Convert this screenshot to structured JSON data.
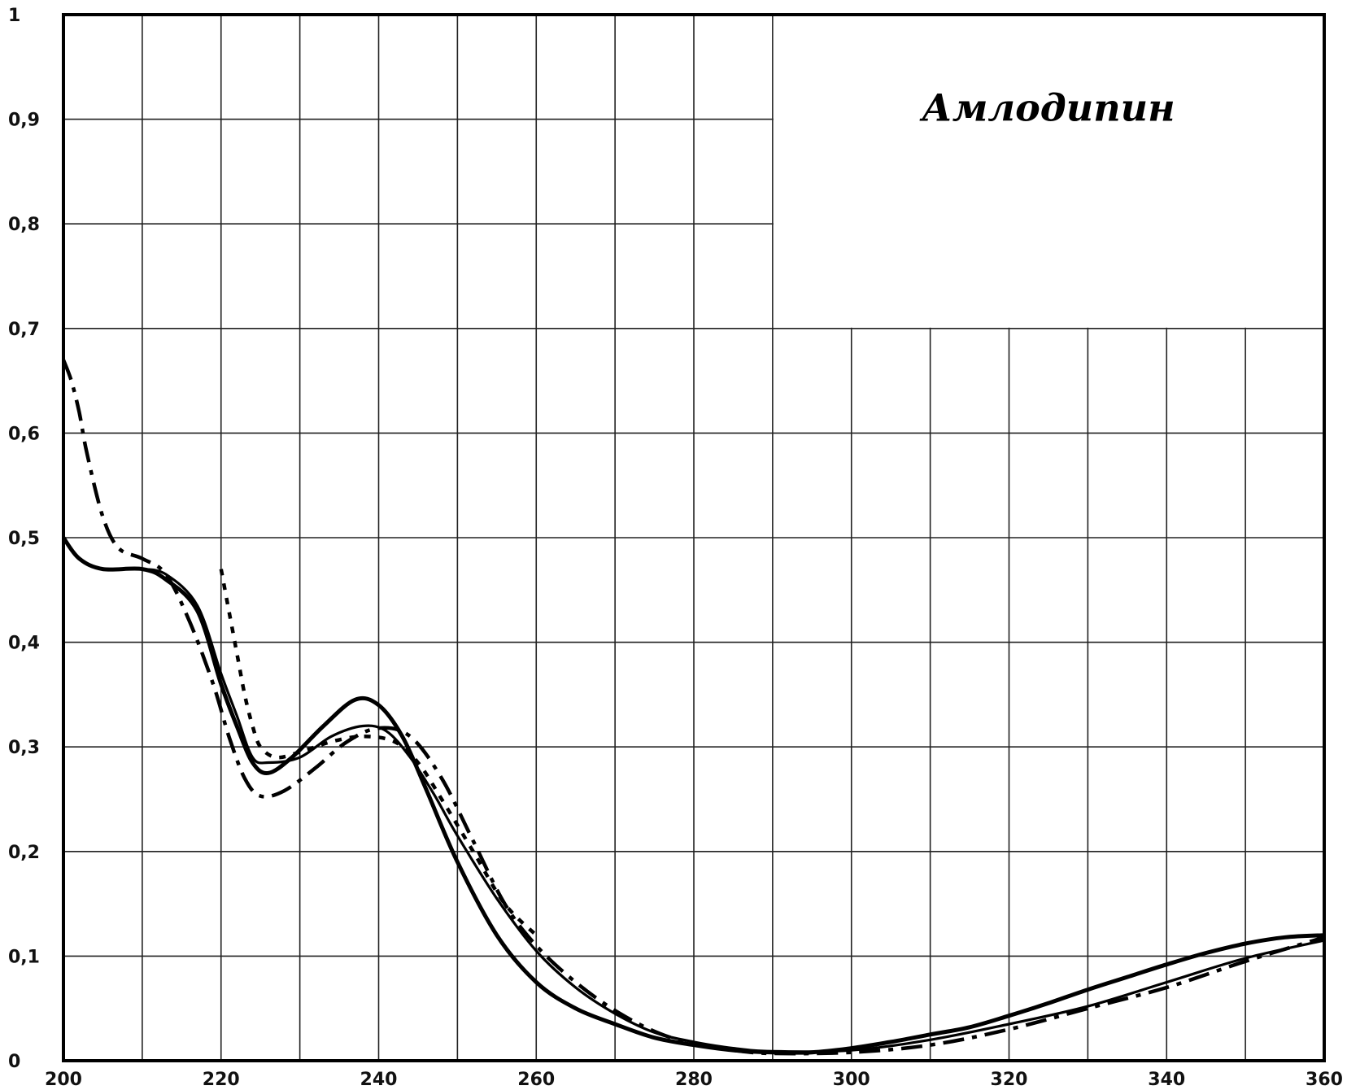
{
  "chart_data": {
    "type": "line",
    "title": "Амлодипин",
    "xlabel": "",
    "ylabel": "",
    "xlim": [
      200,
      360
    ],
    "ylim": [
      0,
      1
    ],
    "x_ticks": [
      "200",
      "220",
      "240",
      "260",
      "280",
      "300",
      "320",
      "340",
      "360"
    ],
    "y_ticks": [
      "0",
      "0,1",
      "0,2",
      "0,3",
      "0,4",
      "0,5",
      "0,6",
      "0,7",
      "0,8",
      "0,9",
      "1"
    ],
    "grid": true,
    "legend": "none",
    "series": [
      {
        "style": "solid",
        "x": [
          200,
          202,
          205,
          210,
          213,
          217,
          220,
          222,
          224,
          226,
          229,
          233,
          237,
          240,
          243,
          246,
          250,
          255,
          260,
          265,
          270,
          275,
          280,
          285,
          290,
          295,
          300,
          305,
          310,
          315,
          320,
          325,
          330,
          335,
          340,
          345,
          350,
          355,
          360
        ],
        "y": [
          0.5,
          0.48,
          0.47,
          0.47,
          0.46,
          0.43,
          0.36,
          0.32,
          0.285,
          0.275,
          0.29,
          0.32,
          0.345,
          0.34,
          0.31,
          0.26,
          0.19,
          0.12,
          0.075,
          0.05,
          0.035,
          0.022,
          0.015,
          0.01,
          0.008,
          0.008,
          0.012,
          0.018,
          0.025,
          0.032,
          0.043,
          0.055,
          0.068,
          0.08,
          0.092,
          0.103,
          0.112,
          0.118,
          0.12
        ]
      },
      {
        "style": "solid-thin",
        "x": [
          210,
          213,
          217,
          220,
          222,
          224,
          226,
          230,
          234,
          238,
          241,
          244,
          247,
          250,
          255,
          260,
          265,
          270,
          275,
          280,
          285,
          290,
          300,
          310,
          320,
          330,
          340,
          350,
          360
        ],
        "y": [
          0.47,
          0.465,
          0.435,
          0.37,
          0.33,
          0.29,
          0.285,
          0.29,
          0.31,
          0.32,
          0.315,
          0.29,
          0.255,
          0.215,
          0.155,
          0.105,
          0.07,
          0.045,
          0.027,
          0.018,
          0.012,
          0.009,
          0.01,
          0.02,
          0.035,
          0.052,
          0.075,
          0.098,
          0.115
        ]
      },
      {
        "style": "dash-dot",
        "x": [
          200,
          201,
          202,
          203,
          205,
          207,
          210,
          213,
          216,
          219,
          221,
          223,
          225,
          228,
          232,
          236,
          240,
          244,
          248,
          252,
          256,
          260,
          265,
          270,
          275,
          280,
          285,
          290,
          300,
          310,
          320,
          330,
          340,
          350,
          360
        ],
        "y": [
          0.67,
          0.65,
          0.62,
          0.58,
          0.52,
          0.49,
          0.48,
          0.465,
          0.42,
          0.36,
          0.31,
          0.27,
          0.253,
          0.258,
          0.28,
          0.305,
          0.318,
          0.31,
          0.27,
          0.21,
          0.15,
          0.11,
          0.075,
          0.048,
          0.028,
          0.016,
          0.01,
          0.007,
          0.008,
          0.015,
          0.03,
          0.05,
          0.07,
          0.095,
          0.118
        ]
      },
      {
        "style": "dotted",
        "x": [
          220,
          221,
          222,
          223,
          224,
          225,
          227,
          230,
          234,
          238,
          242,
          245,
          248,
          252,
          256,
          260
        ],
        "y": [
          0.47,
          0.43,
          0.39,
          0.35,
          0.32,
          0.3,
          0.29,
          0.295,
          0.305,
          0.31,
          0.305,
          0.285,
          0.25,
          0.2,
          0.15,
          0.12
        ]
      }
    ]
  }
}
